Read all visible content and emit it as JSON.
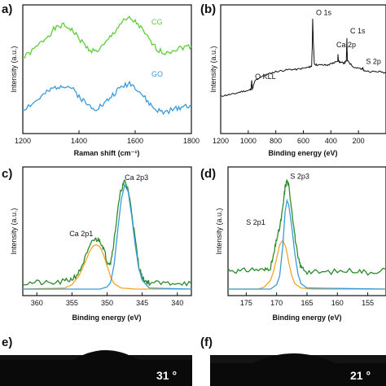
{
  "colors": {
    "green": "#5fcd3c",
    "blue": "#3a9bd8",
    "orange": "#f1a52a",
    "dark_green": "#2e8a2e",
    "black": "#111111",
    "photo_bg": "#141414"
  },
  "chart_data": [
    {
      "panel": "a",
      "panel_label": "a)",
      "type": "line",
      "title": "",
      "xlabel": "Raman shift (cm⁻¹)",
      "ylabel": "Intensity (a.u.)",
      "xlim": [
        1200,
        1800
      ],
      "xticks": [
        "1200",
        "1400",
        "1600",
        "1800"
      ],
      "series": [
        {
          "name": "CG",
          "color": "#5fcd3c",
          "x": [
            1200,
            1240,
            1280,
            1310,
            1340,
            1370,
            1400,
            1430,
            1460,
            1490,
            1520,
            1550,
            1580,
            1610,
            1640,
            1670,
            1700,
            1740,
            1770,
            1800
          ],
          "y": [
            0.62,
            0.7,
            0.8,
            0.88,
            0.92,
            0.89,
            0.8,
            0.71,
            0.68,
            0.74,
            0.84,
            0.94,
            0.98,
            0.93,
            0.82,
            0.72,
            0.67,
            0.7,
            0.72,
            0.73
          ]
        },
        {
          "name": "GO",
          "color": "#3a9bd8",
          "x": [
            1200,
            1240,
            1280,
            1310,
            1340,
            1370,
            1400,
            1430,
            1460,
            1490,
            1520,
            1550,
            1580,
            1610,
            1640,
            1670,
            1700,
            1740,
            1770,
            1800
          ],
          "y": [
            0.16,
            0.22,
            0.3,
            0.35,
            0.38,
            0.36,
            0.28,
            0.2,
            0.17,
            0.21,
            0.29,
            0.36,
            0.4,
            0.34,
            0.24,
            0.16,
            0.13,
            0.16,
            0.19,
            0.2
          ]
        }
      ]
    },
    {
      "panel": "b",
      "panel_label": "(b)",
      "type": "line",
      "title": "",
      "xlabel": "Binding energy (eV)",
      "ylabel": "Intensity (a.u.)",
      "xlim": [
        1200,
        0
      ],
      "xticks": [
        "1200",
        "1000",
        "800",
        "600",
        "400",
        "200"
      ],
      "series": [
        {
          "name": "",
          "color": "#111111",
          "x": [
            1200,
            1150,
            1100,
            1050,
            1000,
            980,
            975,
            970,
            950,
            900,
            850,
            800,
            750,
            700,
            650,
            600,
            560,
            540,
            535,
            532,
            528,
            520,
            500,
            450,
            420,
            400,
            380,
            350,
            349,
            346,
            340,
            320,
            300,
            288,
            286,
            284,
            282,
            280,
            260,
            230,
            200,
            170,
            169,
            166,
            160,
            100,
            50,
            0
          ],
          "y": [
            0.28,
            0.29,
            0.3,
            0.32,
            0.33,
            0.34,
            0.42,
            0.34,
            0.42,
            0.46,
            0.48,
            0.5,
            0.51,
            0.52,
            0.52,
            0.53,
            0.54,
            0.55,
            0.75,
            0.98,
            0.78,
            0.57,
            0.56,
            0.56,
            0.56,
            0.57,
            0.58,
            0.6,
            0.66,
            0.61,
            0.59,
            0.58,
            0.58,
            0.6,
            0.72,
            0.8,
            0.68,
            0.6,
            0.57,
            0.54,
            0.53,
            0.52,
            0.54,
            0.52,
            0.51,
            0.5,
            0.5,
            0.49
          ]
        }
      ],
      "annotations": [
        {
          "text": "O KLL",
          "x": 975,
          "y": 0.42
        },
        {
          "text": "O 1s",
          "x": 532,
          "y": 0.98
        },
        {
          "text": "Ca 2p",
          "x": 349,
          "y": 0.66
        },
        {
          "text": "C 1s",
          "x": 284,
          "y": 0.8
        },
        {
          "text": "S 2p",
          "x": 169,
          "y": 0.54
        }
      ]
    },
    {
      "panel": "c",
      "panel_label": "c)",
      "type": "line",
      "title": "",
      "xlabel": "Binding energy (eV)",
      "ylabel": "Intensity (a.u.)",
      "xlim": [
        362,
        338
      ],
      "xticks": [
        "360",
        "355",
        "350",
        "345",
        "340"
      ],
      "series": [
        {
          "name": "",
          "color": "#2e8a2e",
          "x": [
            362,
            360,
            358,
            356,
            355,
            354,
            353,
            352,
            351.5,
            351,
            350.5,
            350,
            349.5,
            349,
            348.5,
            348,
            347.5,
            347,
            346.5,
            346,
            345.5,
            345,
            344.5,
            344,
            342,
            340,
            338
          ],
          "y": [
            0.05,
            0.06,
            0.05,
            0.07,
            0.09,
            0.15,
            0.3,
            0.44,
            0.45,
            0.44,
            0.37,
            0.25,
            0.24,
            0.44,
            0.71,
            0.9,
            0.97,
            0.9,
            0.7,
            0.45,
            0.22,
            0.1,
            0.07,
            0.06,
            0.05,
            0.06,
            0.05
          ]
        },
        {
          "name": "",
          "color": "#f1a52a",
          "x": [
            362,
            356,
            355,
            354,
            353,
            352.5,
            352,
            351.5,
            351,
            350.5,
            350,
            349.5,
            349,
            348,
            346,
            338
          ],
          "y": [
            0.0,
            0.01,
            0.04,
            0.12,
            0.26,
            0.34,
            0.39,
            0.4,
            0.38,
            0.31,
            0.21,
            0.11,
            0.05,
            0.01,
            0.0,
            0.0
          ]
        },
        {
          "name": "",
          "color": "#3a9bd8",
          "x": [
            362,
            351,
            350,
            349.5,
            349,
            348.5,
            348,
            347.5,
            347,
            346.5,
            346,
            345.5,
            345,
            344,
            338
          ],
          "y": [
            0.0,
            0.0,
            0.02,
            0.06,
            0.22,
            0.52,
            0.8,
            0.94,
            0.88,
            0.66,
            0.4,
            0.19,
            0.08,
            0.01,
            0.0
          ]
        }
      ],
      "annotations": [
        {
          "text": "Ca 2p1",
          "x": 351.2,
          "y": 0.45
        },
        {
          "text": "Ca 2p3",
          "x": 347.5,
          "y": 0.97
        }
      ]
    },
    {
      "panel": "d",
      "panel_label": "(d)",
      "type": "line",
      "title": "",
      "xlabel": "Binding energy (eV)",
      "ylabel": "Intensity (a.u.)",
      "xlim": [
        178,
        152
      ],
      "xticks": [
        "175",
        "170",
        "165",
        "160",
        "155"
      ],
      "series": [
        {
          "name": "",
          "color": "#2e8a2e",
          "x": [
            178,
            176,
            174,
            172,
            171,
            170.5,
            170,
            169.5,
            169,
            168.6,
            168.3,
            168,
            167.5,
            167,
            166.5,
            166,
            165,
            163,
            160,
            157,
            155,
            152
          ],
          "y": [
            0.18,
            0.16,
            0.18,
            0.17,
            0.2,
            0.3,
            0.45,
            0.55,
            0.72,
            0.92,
            0.98,
            0.93,
            0.72,
            0.48,
            0.28,
            0.2,
            0.16,
            0.15,
            0.16,
            0.17,
            0.15,
            0.18
          ]
        },
        {
          "name": "",
          "color": "#f1a52a",
          "x": [
            178,
            173,
            172,
            171,
            170.5,
            170,
            169.5,
            169,
            168.5,
            168,
            167.5,
            167,
            166,
            164,
            152
          ],
          "y": [
            0.0,
            0.0,
            0.02,
            0.08,
            0.16,
            0.28,
            0.4,
            0.44,
            0.38,
            0.24,
            0.12,
            0.05,
            0.01,
            0.0,
            0.0
          ]
        },
        {
          "name": "",
          "color": "#3a9bd8",
          "x": [
            178,
            171,
            170,
            169.5,
            169,
            168.6,
            168.3,
            168,
            167.5,
            167,
            166.5,
            166,
            165,
            152
          ],
          "y": [
            0.0,
            0.0,
            0.04,
            0.12,
            0.38,
            0.7,
            0.8,
            0.76,
            0.56,
            0.32,
            0.14,
            0.05,
            0.01,
            0.0
          ]
        }
      ],
      "annotations": [
        {
          "text": "S 2p1",
          "x": 170.2,
          "y": 0.55
        },
        {
          "text": "S 2p3",
          "x": 168.3,
          "y": 0.98
        }
      ]
    }
  ],
  "photos": [
    {
      "panel_label": "e)",
      "angle_text": "31 °"
    },
    {
      "panel_label": "(f)",
      "angle_text": "21 °"
    }
  ]
}
